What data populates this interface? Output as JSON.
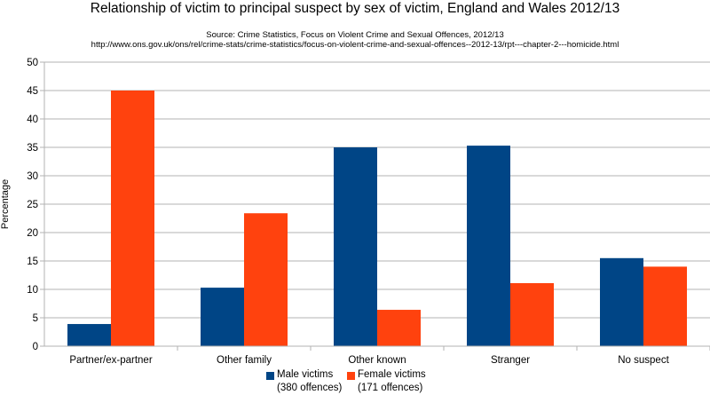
{
  "header": {
    "title": "Relationship of victim to principal suspect by sex of victim, England and Wales 2012/13",
    "source": "Source: Crime Statistics, Focus on Violent Crime and Sexual Offences, 2012/13",
    "url": "http://www.ons.gov.uk/ons/rel/crime-stats/crime-statistics/focus-on-violent-crime-and-sexual-offences--2012-13/rpt---chapter-2---homicide.html"
  },
  "chart_data": {
    "type": "bar",
    "title": "Relationship of victim to principal suspect by sex of victim, England and Wales 2012/13",
    "xlabel": "",
    "ylabel": "Percentage",
    "ylim": [
      0,
      50
    ],
    "yticks": [
      0,
      5,
      10,
      15,
      20,
      25,
      30,
      35,
      40,
      45,
      50
    ],
    "grid": "horizontal",
    "legend_position": "bottom",
    "categories": [
      "Partner/ex-partner",
      "Other family",
      "Other known",
      "Stranger",
      "No suspect"
    ],
    "series": [
      {
        "name": "Male victims",
        "name_line2": "(380 offences)",
        "color": "#004586",
        "values": [
          3.9,
          10.3,
          35.0,
          35.3,
          15.5
        ]
      },
      {
        "name": "Female victims",
        "name_line2": "(171 offences)",
        "color": "#ff420e",
        "values": [
          45.0,
          23.4,
          6.4,
          11.1,
          14.0
        ]
      }
    ]
  }
}
